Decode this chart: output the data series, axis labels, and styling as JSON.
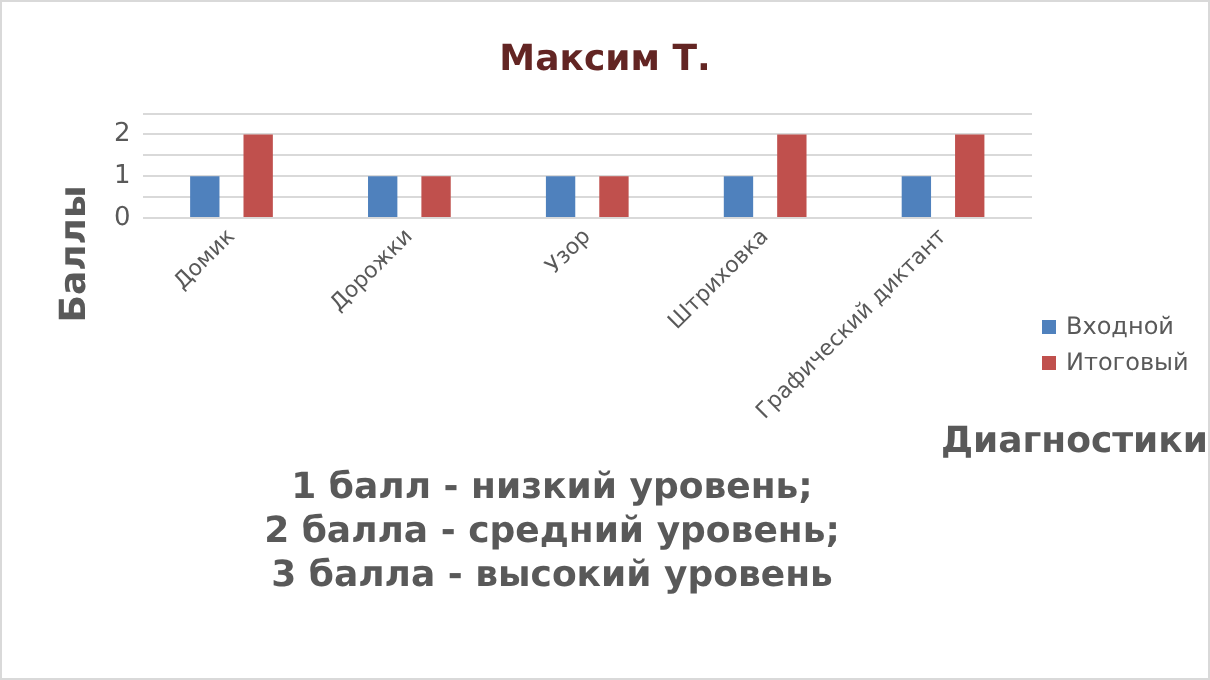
{
  "chart_data": {
    "type": "bar",
    "title": "Максим Т.",
    "xlabel": "Диагностики",
    "ylabel": "Баллы",
    "categories": [
      "Домик",
      "Дорожки",
      "Узор",
      "Штриховка",
      "Графический диктант"
    ],
    "series": [
      {
        "name": "Входной",
        "color": "#4f81bd",
        "values": [
          1,
          1,
          1,
          1,
          1
        ]
      },
      {
        "name": "Итоговый",
        "color": "#c0504d",
        "values": [
          2,
          1,
          1,
          2,
          2
        ]
      }
    ],
    "ylim": [
      0,
      2.5
    ],
    "yticks": [
      0,
      {
        "value": 0.5,
        "label": null
      },
      1,
      {
        "value": 1.5,
        "label": null
      },
      2,
      {
        "value": 2.5,
        "label": null
      }
    ],
    "grid": "y",
    "legend": "right",
    "annotations": [
      "1 балл - низкий уровень;\n2 балла - средний уровень;\n3 балла - высокий уровень"
    ]
  }
}
